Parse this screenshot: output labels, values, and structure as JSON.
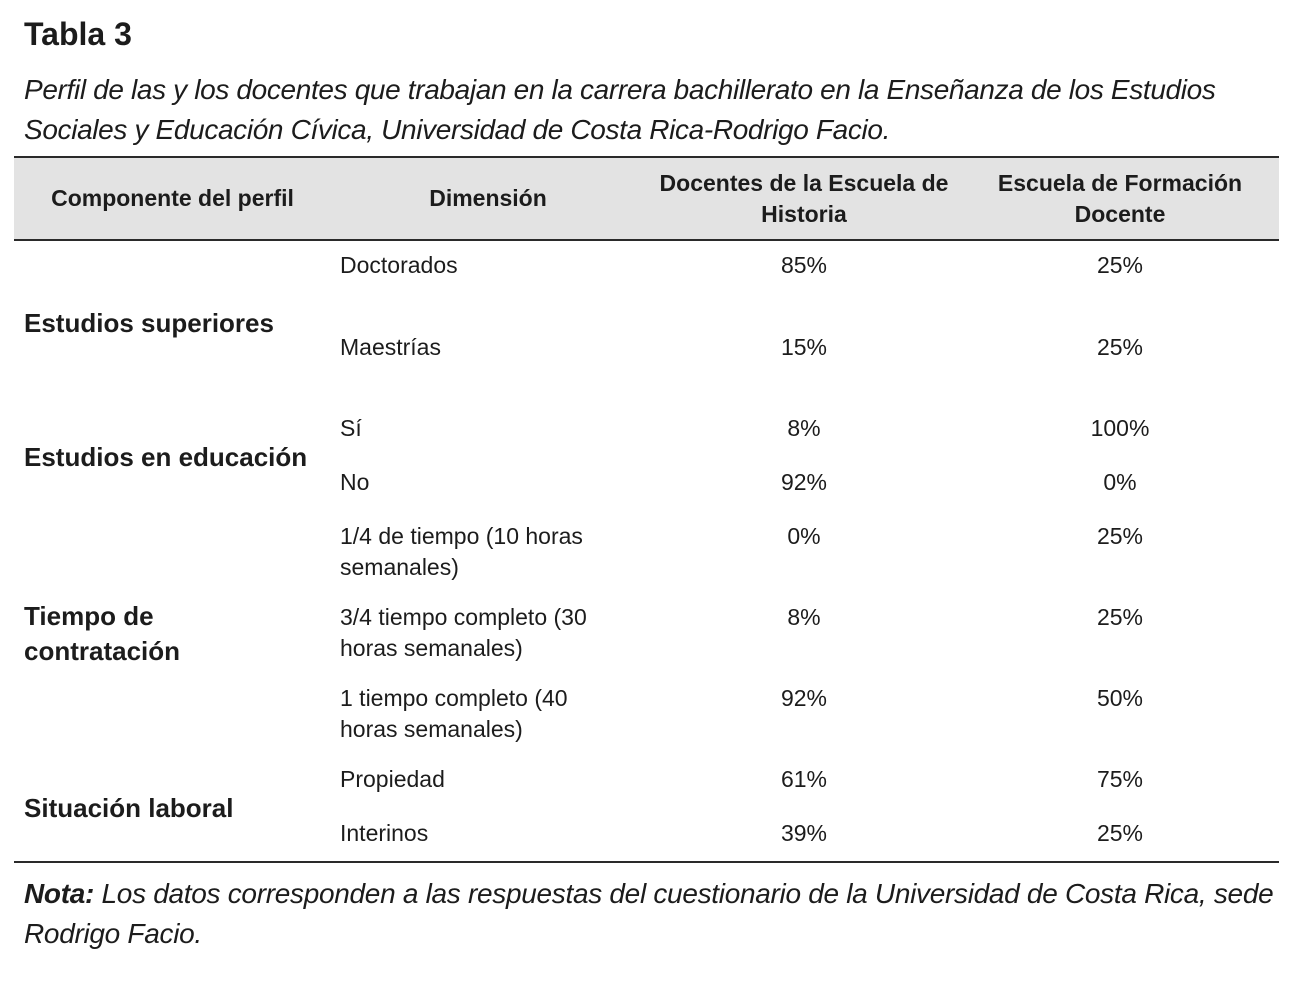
{
  "title": "Tabla 3",
  "caption": "Perfil de las y los docentes que trabajan en la carrera bachillerato en la Enseñanza de los Estudios Sociales y Educación Cívica, Universidad de Costa Rica-Rodrigo Facio.",
  "headers": {
    "componente": "Componente del perfil",
    "dimension": "Dimensión",
    "historia": "Docentes de la Escuela de Historia",
    "formacion": "Escuela de Formación Docente"
  },
  "groups": [
    {
      "componente": "Estudios superiores",
      "rows": [
        {
          "dimension": "Doctorados",
          "historia": "85%",
          "formacion": "25%"
        },
        {
          "dimension": "Maestrías",
          "historia": "15%",
          "formacion": "25%"
        }
      ]
    },
    {
      "componente": "Estudios en educación",
      "rows": [
        {
          "dimension": "Sí",
          "historia": "8%",
          "formacion": "100%"
        },
        {
          "dimension": "No",
          "historia": "92%",
          "formacion": "0%"
        }
      ]
    },
    {
      "componente": "Tiempo de contratación",
      "rows": [
        {
          "dimension": "1/4 de tiempo (10 horas semanales)",
          "historia": "0%",
          "formacion": "25%"
        },
        {
          "dimension": "3/4 tiempo completo (30 horas semanales)",
          "historia": "8%",
          "formacion": "25%"
        },
        {
          "dimension": "1 tiempo completo (40 horas semanales)",
          "historia": "92%",
          "formacion": "50%"
        }
      ]
    },
    {
      "componente": "Situación laboral",
      "rows": [
        {
          "dimension": "Propiedad",
          "historia": "61%",
          "formacion": "75%"
        },
        {
          "dimension": "Interinos",
          "historia": "39%",
          "formacion": "25%"
        }
      ]
    }
  ],
  "note": {
    "label": "Nota:",
    "text": " Los datos corresponden a las respuestas del cuestionario de la Universidad de Costa Rica, sede Rodrigo Facio."
  }
}
